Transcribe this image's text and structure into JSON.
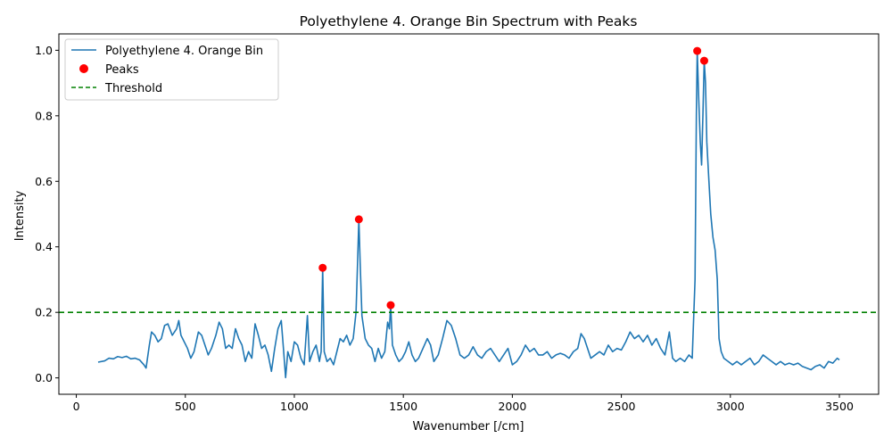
{
  "chart_data": {
    "type": "line",
    "title": "Polyethylene 4. Orange Bin Spectrum with Peaks",
    "xlabel": "Wavenumber [/cm]",
    "ylabel": "Intensity",
    "xlim": [
      -80,
      3680
    ],
    "ylim": [
      -0.05,
      1.05
    ],
    "x_ticks": [
      0,
      500,
      1000,
      1500,
      2000,
      2500,
      3000,
      3500
    ],
    "y_ticks": [
      0.0,
      0.2,
      0.4,
      0.6,
      0.8,
      1.0
    ],
    "x_tick_labels": [
      "0",
      "500",
      "1000",
      "1500",
      "2000",
      "2500",
      "3000",
      "3500"
    ],
    "y_tick_labels": [
      "0.0",
      "0.2",
      "0.4",
      "0.6",
      "0.8",
      "1.0"
    ],
    "grid": false,
    "legend_position": "top-left",
    "series": [
      {
        "name": "Polyethylene 4. Orange Bin",
        "kind": "line",
        "color": "#1f77b4",
        "points": [
          [
            100,
            0.048
          ],
          [
            130,
            0.052
          ],
          [
            150,
            0.06
          ],
          [
            170,
            0.058
          ],
          [
            190,
            0.065
          ],
          [
            210,
            0.062
          ],
          [
            230,
            0.066
          ],
          [
            250,
            0.058
          ],
          [
            270,
            0.06
          ],
          [
            290,
            0.055
          ],
          [
            310,
            0.04
          ],
          [
            320,
            0.03
          ],
          [
            335,
            0.1
          ],
          [
            345,
            0.14
          ],
          [
            360,
            0.13
          ],
          [
            375,
            0.11
          ],
          [
            390,
            0.12
          ],
          [
            405,
            0.16
          ],
          [
            420,
            0.165
          ],
          [
            440,
            0.13
          ],
          [
            460,
            0.15
          ],
          [
            470,
            0.175
          ],
          [
            480,
            0.13
          ],
          [
            495,
            0.11
          ],
          [
            510,
            0.09
          ],
          [
            525,
            0.06
          ],
          [
            540,
            0.08
          ],
          [
            560,
            0.14
          ],
          [
            575,
            0.13
          ],
          [
            590,
            0.1
          ],
          [
            605,
            0.07
          ],
          [
            620,
            0.09
          ],
          [
            640,
            0.13
          ],
          [
            655,
            0.17
          ],
          [
            670,
            0.15
          ],
          [
            685,
            0.09
          ],
          [
            700,
            0.1
          ],
          [
            715,
            0.09
          ],
          [
            730,
            0.15
          ],
          [
            745,
            0.12
          ],
          [
            760,
            0.1
          ],
          [
            775,
            0.05
          ],
          [
            790,
            0.08
          ],
          [
            805,
            0.06
          ],
          [
            820,
            0.165
          ],
          [
            835,
            0.13
          ],
          [
            850,
            0.09
          ],
          [
            865,
            0.1
          ],
          [
            880,
            0.07
          ],
          [
            895,
            0.02
          ],
          [
            910,
            0.09
          ],
          [
            925,
            0.15
          ],
          [
            940,
            0.175
          ],
          [
            950,
            0.09
          ],
          [
            960,
            0.001
          ],
          [
            970,
            0.08
          ],
          [
            985,
            0.05
          ],
          [
            1000,
            0.11
          ],
          [
            1015,
            0.1
          ],
          [
            1030,
            0.06
          ],
          [
            1045,
            0.04
          ],
          [
            1060,
            0.19
          ],
          [
            1070,
            0.05
          ],
          [
            1085,
            0.08
          ],
          [
            1100,
            0.1
          ],
          [
            1115,
            0.05
          ],
          [
            1123,
            0.08
          ],
          [
            1130,
            0.336
          ],
          [
            1137,
            0.08
          ],
          [
            1150,
            0.05
          ],
          [
            1165,
            0.06
          ],
          [
            1180,
            0.04
          ],
          [
            1195,
            0.08
          ],
          [
            1210,
            0.12
          ],
          [
            1225,
            0.11
          ],
          [
            1240,
            0.13
          ],
          [
            1255,
            0.1
          ],
          [
            1270,
            0.12
          ],
          [
            1283,
            0.2
          ],
          [
            1290,
            0.35
          ],
          [
            1296,
            0.484
          ],
          [
            1302,
            0.35
          ],
          [
            1310,
            0.19
          ],
          [
            1325,
            0.12
          ],
          [
            1340,
            0.1
          ],
          [
            1355,
            0.09
          ],
          [
            1370,
            0.05
          ],
          [
            1385,
            0.09
          ],
          [
            1400,
            0.06
          ],
          [
            1415,
            0.08
          ],
          [
            1428,
            0.17
          ],
          [
            1436,
            0.15
          ],
          [
            1442,
            0.222
          ],
          [
            1450,
            0.1
          ],
          [
            1465,
            0.07
          ],
          [
            1480,
            0.05
          ],
          [
            1495,
            0.06
          ],
          [
            1510,
            0.08
          ],
          [
            1525,
            0.11
          ],
          [
            1540,
            0.07
          ],
          [
            1555,
            0.05
          ],
          [
            1570,
            0.06
          ],
          [
            1590,
            0.09
          ],
          [
            1610,
            0.12
          ],
          [
            1625,
            0.1
          ],
          [
            1640,
            0.05
          ],
          [
            1660,
            0.07
          ],
          [
            1680,
            0.12
          ],
          [
            1700,
            0.175
          ],
          [
            1720,
            0.16
          ],
          [
            1740,
            0.12
          ],
          [
            1760,
            0.07
          ],
          [
            1780,
            0.06
          ],
          [
            1800,
            0.07
          ],
          [
            1820,
            0.095
          ],
          [
            1840,
            0.07
          ],
          [
            1860,
            0.06
          ],
          [
            1880,
            0.08
          ],
          [
            1900,
            0.09
          ],
          [
            1920,
            0.07
          ],
          [
            1940,
            0.05
          ],
          [
            1960,
            0.07
          ],
          [
            1980,
            0.09
          ],
          [
            2000,
            0.04
          ],
          [
            2020,
            0.05
          ],
          [
            2040,
            0.07
          ],
          [
            2060,
            0.1
          ],
          [
            2080,
            0.08
          ],
          [
            2100,
            0.09
          ],
          [
            2120,
            0.07
          ],
          [
            2140,
            0.07
          ],
          [
            2160,
            0.08
          ],
          [
            2180,
            0.06
          ],
          [
            2200,
            0.07
          ],
          [
            2220,
            0.075
          ],
          [
            2240,
            0.07
          ],
          [
            2260,
            0.06
          ],
          [
            2280,
            0.08
          ],
          [
            2300,
            0.09
          ],
          [
            2315,
            0.135
          ],
          [
            2330,
            0.12
          ],
          [
            2345,
            0.09
          ],
          [
            2360,
            0.06
          ],
          [
            2380,
            0.07
          ],
          [
            2400,
            0.08
          ],
          [
            2420,
            0.07
          ],
          [
            2440,
            0.1
          ],
          [
            2460,
            0.08
          ],
          [
            2480,
            0.09
          ],
          [
            2500,
            0.085
          ],
          [
            2520,
            0.11
          ],
          [
            2540,
            0.14
          ],
          [
            2560,
            0.12
          ],
          [
            2580,
            0.13
          ],
          [
            2600,
            0.11
          ],
          [
            2620,
            0.13
          ],
          [
            2640,
            0.1
          ],
          [
            2660,
            0.12
          ],
          [
            2680,
            0.09
          ],
          [
            2700,
            0.07
          ],
          [
            2720,
            0.14
          ],
          [
            2735,
            0.06
          ],
          [
            2750,
            0.05
          ],
          [
            2770,
            0.06
          ],
          [
            2790,
            0.05
          ],
          [
            2810,
            0.07
          ],
          [
            2825,
            0.06
          ],
          [
            2838,
            0.3
          ],
          [
            2844,
            0.8
          ],
          [
            2848,
            0.998
          ],
          [
            2855,
            0.85
          ],
          [
            2862,
            0.72
          ],
          [
            2868,
            0.65
          ],
          [
            2874,
            0.8
          ],
          [
            2880,
            0.968
          ],
          [
            2886,
            0.9
          ],
          [
            2892,
            0.72
          ],
          [
            2900,
            0.62
          ],
          [
            2910,
            0.5
          ],
          [
            2920,
            0.43
          ],
          [
            2930,
            0.39
          ],
          [
            2940,
            0.3
          ],
          [
            2948,
            0.12
          ],
          [
            2958,
            0.08
          ],
          [
            2970,
            0.06
          ],
          [
            2990,
            0.05
          ],
          [
            3010,
            0.04
          ],
          [
            3030,
            0.05
          ],
          [
            3050,
            0.04
          ],
          [
            3070,
            0.05
          ],
          [
            3090,
            0.06
          ],
          [
            3110,
            0.04
          ],
          [
            3130,
            0.05
          ],
          [
            3150,
            0.07
          ],
          [
            3170,
            0.06
          ],
          [
            3190,
            0.05
          ],
          [
            3210,
            0.04
          ],
          [
            3230,
            0.05
          ],
          [
            3250,
            0.04
          ],
          [
            3270,
            0.045
          ],
          [
            3290,
            0.04
          ],
          [
            3310,
            0.045
          ],
          [
            3330,
            0.035
          ],
          [
            3350,
            0.03
          ],
          [
            3370,
            0.025
          ],
          [
            3390,
            0.035
          ],
          [
            3410,
            0.04
          ],
          [
            3430,
            0.03
          ],
          [
            3450,
            0.05
          ],
          [
            3470,
            0.045
          ],
          [
            3490,
            0.06
          ],
          [
            3500,
            0.055
          ]
        ]
      },
      {
        "name": "Peaks",
        "kind": "scatter",
        "color": "#ff0000",
        "points": [
          [
            1130,
            0.336
          ],
          [
            1296,
            0.484
          ],
          [
            1442,
            0.222
          ],
          [
            2848,
            0.998
          ],
          [
            2880,
            0.968
          ]
        ]
      },
      {
        "name": "Threshold",
        "kind": "hline",
        "color": "#008000",
        "y": 0.2
      }
    ]
  }
}
